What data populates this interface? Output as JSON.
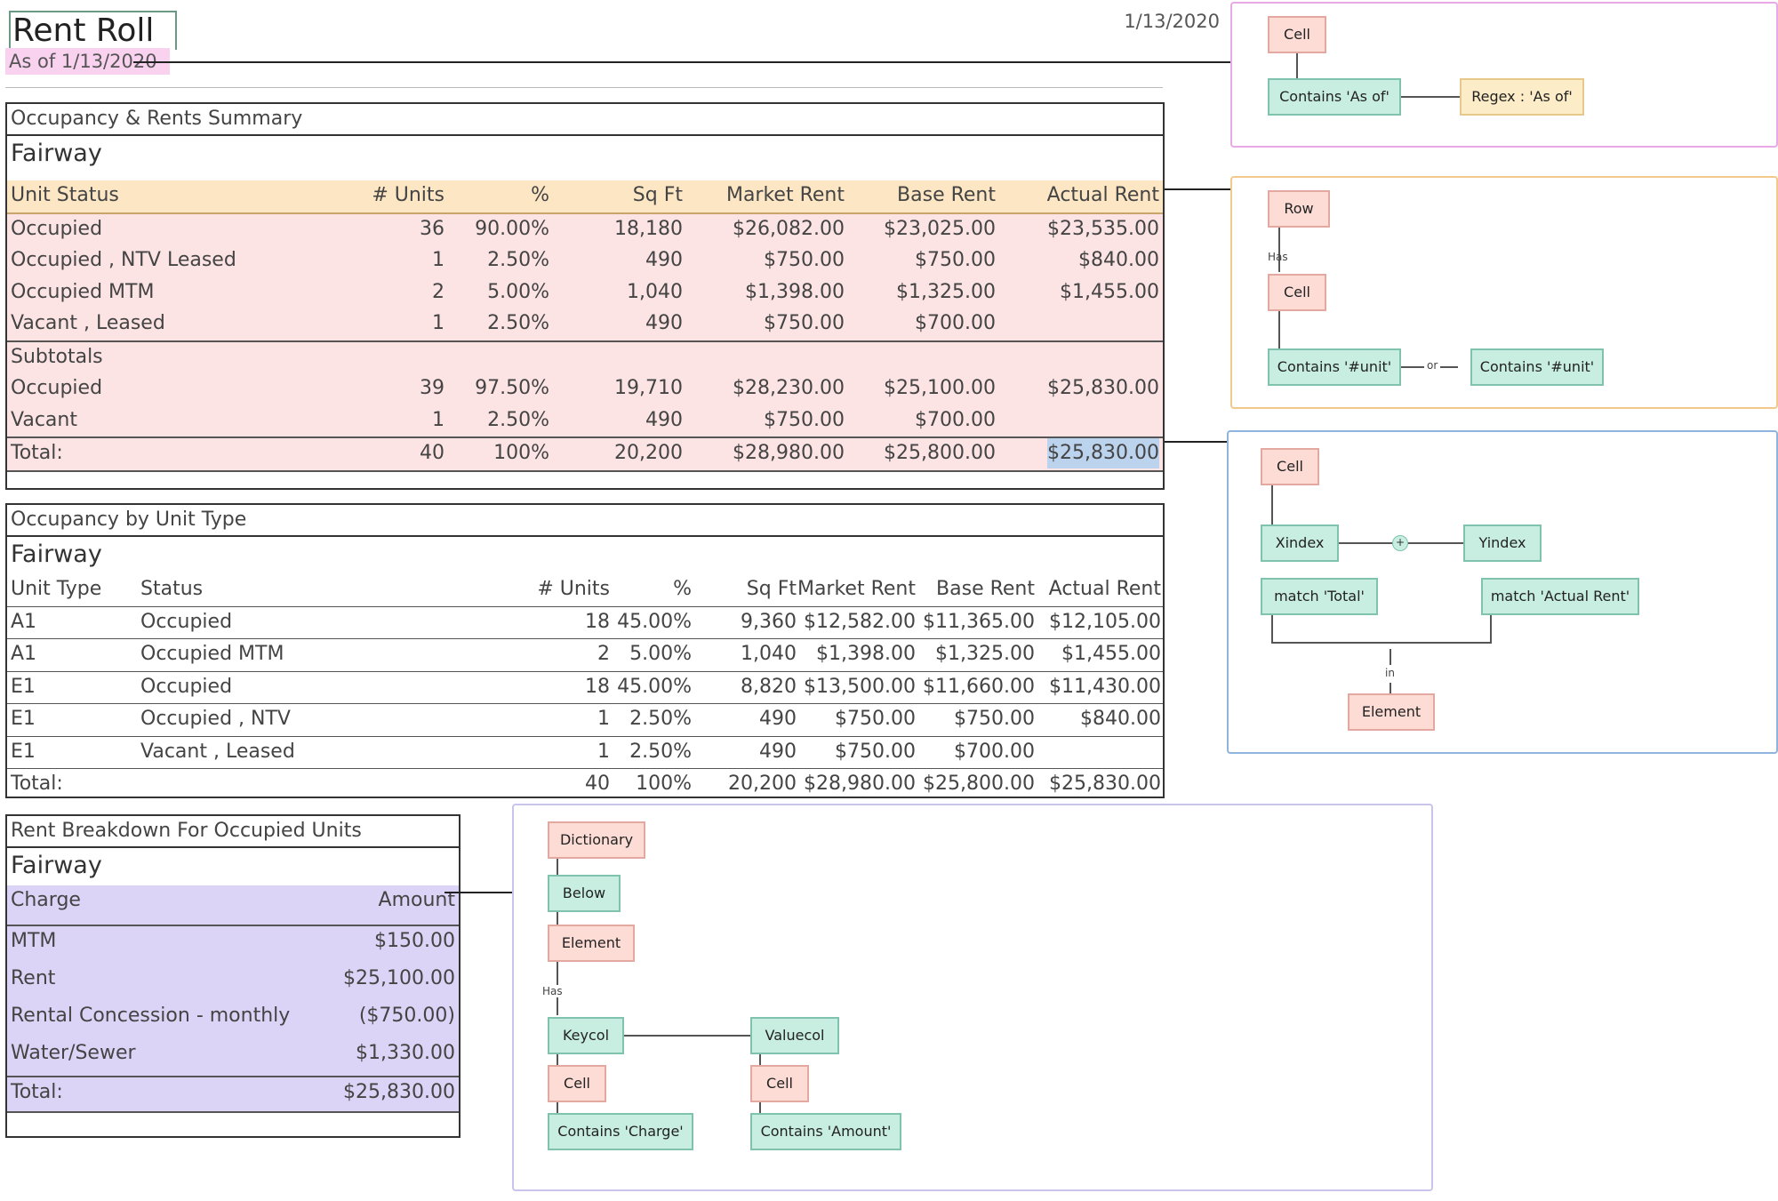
{
  "report": {
    "title": "Rent Roll",
    "as_of": "As of 1/13/2020",
    "date": "1/13/2020"
  },
  "summary": {
    "title": "Occupancy & Rents Summary",
    "property": "Fairway",
    "headers": [
      "Unit Status",
      "# Units",
      "%",
      "Sq Ft",
      "Market Rent",
      "Base Rent",
      "Actual Rent"
    ],
    "rows": [
      [
        "Occupied",
        "36",
        "90.00%",
        "18,180",
        "$26,082.00",
        "$23,025.00",
        "$23,535.00"
      ],
      [
        "Occupied , NTV Leased",
        "1",
        "2.50%",
        "490",
        "$750.00",
        "$750.00",
        "$840.00"
      ],
      [
        "Occupied MTM",
        "2",
        "5.00%",
        "1,040",
        "$1,398.00",
        "$1,325.00",
        "$1,455.00"
      ],
      [
        "Vacant , Leased",
        "1",
        "2.50%",
        "490",
        "$750.00",
        "$700.00",
        ""
      ]
    ],
    "subtotals_label": "Subtotals",
    "subtotal_rows": [
      [
        "Occupied",
        "39",
        "97.50%",
        "19,710",
        "$28,230.00",
        "$25,100.00",
        "$25,830.00"
      ],
      [
        "Vacant",
        "1",
        "2.50%",
        "490",
        "$750.00",
        "$700.00",
        ""
      ]
    ],
    "total": [
      "Total:",
      "40",
      "100%",
      "20,200",
      "$28,980.00",
      "$25,800.00",
      "$25,830.00"
    ]
  },
  "by_type": {
    "title": "Occupancy by Unit Type",
    "property": "Fairway",
    "headers": [
      "Unit Type",
      "Status",
      "# Units",
      "%",
      "Sq Ft",
      "Market Rent",
      "Base Rent",
      "Actual Rent"
    ],
    "rows": [
      [
        "A1",
        "Occupied",
        "18",
        "45.00%",
        "9,360",
        "$12,582.00",
        "$11,365.00",
        "$12,105.00"
      ],
      [
        "A1",
        "Occupied MTM",
        "2",
        "5.00%",
        "1,040",
        "$1,398.00",
        "$1,325.00",
        "$1,455.00"
      ],
      [
        "E1",
        "Occupied",
        "18",
        "45.00%",
        "8,820",
        "$13,500.00",
        "$11,660.00",
        "$11,430.00"
      ],
      [
        "E1",
        "Occupied , NTV",
        "1",
        "2.50%",
        "490",
        "$750.00",
        "$750.00",
        "$840.00"
      ],
      [
        "E1",
        "Vacant , Leased",
        "1",
        "2.50%",
        "490",
        "$750.00",
        "$700.00",
        ""
      ]
    ],
    "total": [
      "Total:",
      "",
      "40",
      "100%",
      "20,200",
      "$28,980.00",
      "$25,800.00",
      "$25,830.00"
    ]
  },
  "breakdown": {
    "title": "Rent Breakdown For Occupied Units",
    "property": "Fairway",
    "headers": [
      "Charge",
      "Amount"
    ],
    "rows": [
      [
        "MTM",
        "$150.00"
      ],
      [
        "Rent",
        "$25,100.00"
      ],
      [
        "Rental Concession - monthly",
        "($750.00)"
      ],
      [
        "Water/Sewer",
        "$1,330.00"
      ]
    ],
    "total": [
      "Total:",
      "$25,830.00"
    ]
  },
  "diagram_asof": {
    "cell": "Cell",
    "contains": "Contains 'As of'",
    "regex": "Regex : 'As of'"
  },
  "diagram_header": {
    "row": "Row",
    "has": "Has",
    "cell": "Cell",
    "contains_a": "Contains '#unit'",
    "or": "or",
    "contains_b": "Contains '#unit'"
  },
  "diagram_total": {
    "cell": "Cell",
    "xindex": "Xindex",
    "plus": "+",
    "yindex": "Yindex",
    "match_total": "match 'Total'",
    "match_actual": "match 'Actual Rent'",
    "in": "in",
    "element": "Element"
  },
  "diagram_dict": {
    "dictionary": "Dictionary",
    "below": "Below",
    "element": "Element",
    "has": "Has",
    "keycol": "Keycol",
    "valuecol": "Valuecol",
    "cell_left": "Cell",
    "cell_right": "Cell",
    "contains_charge": "Contains 'Charge'",
    "contains_amount": "Contains 'Amount'"
  },
  "colors": {
    "pink_fill": "#fde4e4",
    "orange_header": "#fce6c3",
    "purple_fill": "#dcd4f6",
    "panel_magenta": "#e9a9e6",
    "panel_orange": "#f2c98a",
    "panel_blue": "#8fb4de",
    "panel_lavender": "#c9c4ec"
  }
}
